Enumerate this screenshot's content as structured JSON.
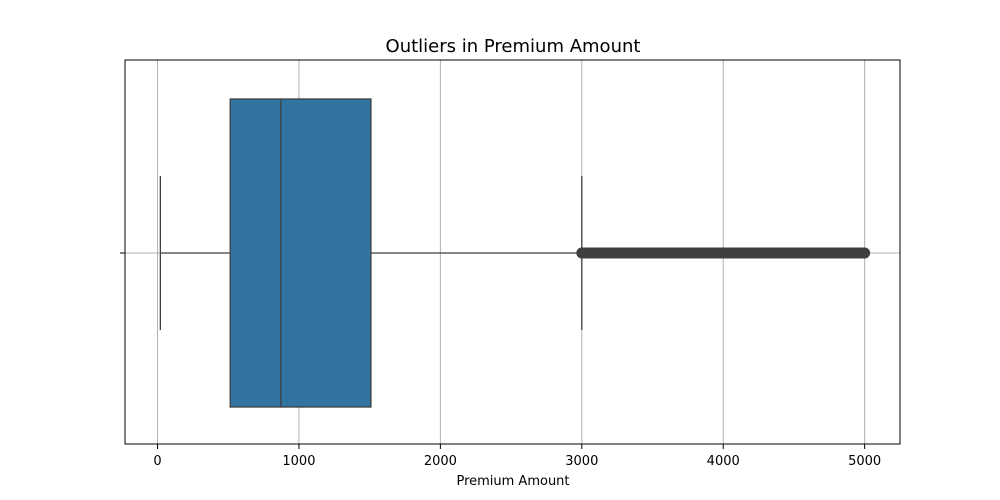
{
  "chart_data": {
    "type": "boxplot",
    "orientation": "horizontal",
    "title": "Outliers in Premium Amount",
    "xlabel": "Premium Amount",
    "ylabel": "",
    "xlim": [
      -230,
      5250
    ],
    "xticks": [
      0,
      1000,
      2000,
      3000,
      4000,
      5000
    ],
    "xtick_labels": [
      "0",
      "1000",
      "2000",
      "3000",
      "4000",
      "5000"
    ],
    "grid": true,
    "box": {
      "whisker_low": 20,
      "q1": 514,
      "median": 872,
      "q3": 1509,
      "whisker_high": 3000,
      "outlier_range": [
        3000,
        5000
      ]
    },
    "colors": {
      "box_fill": "#3274a1",
      "line": "#3f3f3f",
      "outliers": "#3f3f3f",
      "grid": "#b0b0b0",
      "frame": "#000000"
    }
  }
}
